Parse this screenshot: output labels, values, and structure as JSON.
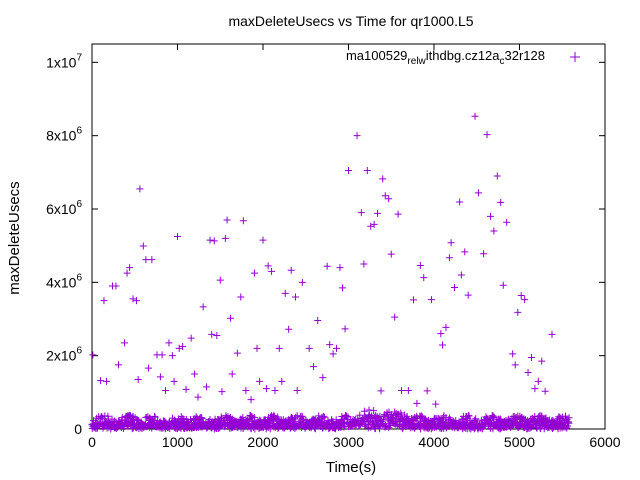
{
  "chart_data": {
    "type": "scatter",
    "title": "maxDeleteUsecs vs Time for qr1000.L5",
    "xlabel": "Time(s)",
    "ylabel": "maxDeleteUsecs",
    "xlim": [
      0,
      6000
    ],
    "ylim": [
      0,
      10500000
    ],
    "x_ticks": [
      0,
      1000,
      2000,
      3000,
      4000,
      5000,
      6000
    ],
    "x_tick_labels": [
      "0",
      "1000",
      "2000",
      "3000",
      "4000",
      "5000",
      "6000"
    ],
    "y_ticks": [
      0,
      2000000,
      4000000,
      6000000,
      8000000,
      10000000
    ],
    "y_tick_labels": [
      {
        "base": "0",
        "exp": ""
      },
      {
        "base": "2x10",
        "exp": "6"
      },
      {
        "base": "4x10",
        "exp": "6"
      },
      {
        "base": "6x10",
        "exp": "6"
      },
      {
        "base": "8x10",
        "exp": "6"
      },
      {
        "base": "1x10",
        "exp": "7"
      }
    ],
    "grid": false,
    "legend_position": "top-right",
    "marker": "plus",
    "series": [
      {
        "legend_parts": [
          {
            "t": "ma100529",
            "s": ""
          },
          {
            "t": "rel",
            "s": "sub"
          },
          {
            "t": "w",
            "s": "sub"
          },
          {
            "t": "ithdbg.cz12a",
            "s": ""
          },
          {
            "t": "c",
            "s": "sub"
          },
          {
            "t": "32r128",
            "s": ""
          }
        ],
        "color": "#9400d3",
        "outliers": [
          [
            10,
            2020000
          ],
          [
            100,
            1320000
          ],
          [
            140,
            3500000
          ],
          [
            170,
            1300000
          ],
          [
            240,
            3900000
          ],
          [
            280,
            3900000
          ],
          [
            310,
            1750000
          ],
          [
            380,
            2350000
          ],
          [
            410,
            4250000
          ],
          [
            440,
            4400000
          ],
          [
            480,
            3550000
          ],
          [
            520,
            3500000
          ],
          [
            540,
            1350000
          ],
          [
            560,
            6550000
          ],
          [
            600,
            4990000
          ],
          [
            630,
            4620000
          ],
          [
            660,
            1660000
          ],
          [
            700,
            4620000
          ],
          [
            760,
            2020000
          ],
          [
            800,
            1420000
          ],
          [
            820,
            2020000
          ],
          [
            860,
            1050000
          ],
          [
            900,
            2350000
          ],
          [
            940,
            2000000
          ],
          [
            960,
            1300000
          ],
          [
            1000,
            5250000
          ],
          [
            1020,
            2200000
          ],
          [
            1060,
            2250000
          ],
          [
            1100,
            1080000
          ],
          [
            1160,
            2480000
          ],
          [
            1200,
            1500000
          ],
          [
            1240,
            870000
          ],
          [
            1300,
            3330000
          ],
          [
            1340,
            1150000
          ],
          [
            1380,
            5150000
          ],
          [
            1400,
            2580000
          ],
          [
            1430,
            5130000
          ],
          [
            1460,
            2550000
          ],
          [
            1500,
            4060000
          ],
          [
            1520,
            1020000
          ],
          [
            1560,
            5200000
          ],
          [
            1580,
            5700000
          ],
          [
            1620,
            3020000
          ],
          [
            1640,
            1500000
          ],
          [
            1700,
            2070000
          ],
          [
            1740,
            3600000
          ],
          [
            1770,
            5680000
          ],
          [
            1800,
            1050000
          ],
          [
            1860,
            800000
          ],
          [
            1900,
            4250000
          ],
          [
            1930,
            2200000
          ],
          [
            1960,
            1300000
          ],
          [
            2000,
            5150000
          ],
          [
            2040,
            1100000
          ],
          [
            2060,
            4450000
          ],
          [
            2100,
            4300000
          ],
          [
            2140,
            1050000
          ],
          [
            2190,
            2200000
          ],
          [
            2220,
            1300000
          ],
          [
            2260,
            3700000
          ],
          [
            2300,
            2720000
          ],
          [
            2330,
            4330000
          ],
          [
            2380,
            3600000
          ],
          [
            2400,
            1050000
          ],
          [
            2460,
            4000000
          ],
          [
            2540,
            2200000
          ],
          [
            2590,
            1700000
          ],
          [
            2640,
            2960000
          ],
          [
            2700,
            1400000
          ],
          [
            2750,
            4440000
          ],
          [
            2780,
            2300000
          ],
          [
            2820,
            2050000
          ],
          [
            2860,
            2200000
          ],
          [
            2900,
            4400000
          ],
          [
            2930,
            3850000
          ],
          [
            2960,
            2730000
          ],
          [
            3000,
            7050000
          ],
          [
            3100,
            8000000
          ],
          [
            3150,
            5900000
          ],
          [
            3180,
            4500000
          ],
          [
            3220,
            7050000
          ],
          [
            3260,
            5530000
          ],
          [
            3300,
            5580000
          ],
          [
            3340,
            5880000
          ],
          [
            3380,
            1040000
          ],
          [
            3400,
            6820000
          ],
          [
            3430,
            6360000
          ],
          [
            3470,
            6280000
          ],
          [
            3500,
            4770000
          ],
          [
            3540,
            3050000
          ],
          [
            3580,
            5860000
          ],
          [
            3620,
            1050000
          ],
          [
            3700,
            1050000
          ],
          [
            3760,
            3520000
          ],
          [
            3800,
            700000
          ],
          [
            3840,
            4460000
          ],
          [
            3880,
            4130000
          ],
          [
            3920,
            1040000
          ],
          [
            3970,
            3530000
          ],
          [
            4020,
            680000
          ],
          [
            4080,
            2600000
          ],
          [
            4100,
            2290000
          ],
          [
            4140,
            2770000
          ],
          [
            4180,
            4670000
          ],
          [
            4200,
            5080000
          ],
          [
            4240,
            3860000
          ],
          [
            4300,
            6190000
          ],
          [
            4320,
            4200000
          ],
          [
            4360,
            4830000
          ],
          [
            4400,
            3650000
          ],
          [
            4480,
            8530000
          ],
          [
            4520,
            6440000
          ],
          [
            4580,
            4780000
          ],
          [
            4620,
            8030000
          ],
          [
            4660,
            5800000
          ],
          [
            4700,
            5400000
          ],
          [
            4740,
            6900000
          ],
          [
            4780,
            6180000
          ],
          [
            4810,
            3920000
          ],
          [
            4850,
            5640000
          ],
          [
            4920,
            2050000
          ],
          [
            4950,
            1750000
          ],
          [
            4980,
            3180000
          ],
          [
            5020,
            3640000
          ],
          [
            5060,
            3530000
          ],
          [
            5100,
            1540000
          ],
          [
            5140,
            1950000
          ],
          [
            5180,
            1100000
          ],
          [
            5220,
            1300000
          ],
          [
            5260,
            1850000
          ],
          [
            5300,
            1030000
          ],
          [
            5380,
            2580000
          ]
        ]
      }
    ]
  }
}
